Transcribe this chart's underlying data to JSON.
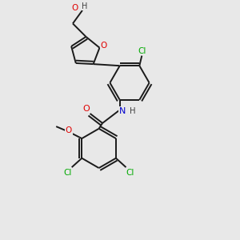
{
  "bg_color": "#e8e8e8",
  "bond_color": "#1a1a1a",
  "atom_colors": {
    "O": "#e00000",
    "N": "#0000cc",
    "Cl": "#00aa00",
    "H": "#404040",
    "C": "#1a1a1a"
  },
  "figsize": [
    3.0,
    3.0
  ],
  "dpi": 100,
  "lw": 1.4
}
